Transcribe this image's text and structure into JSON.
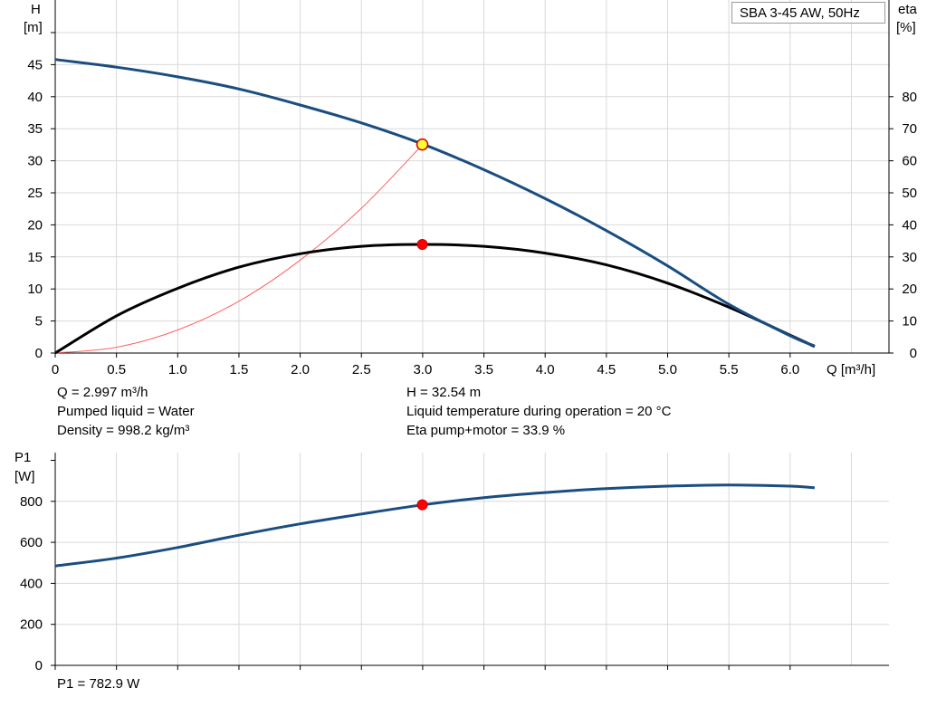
{
  "chart_data": [
    {
      "type": "line",
      "title": "",
      "legend": "SBA 3-45 AW, 50Hz",
      "legend_placement": "top-right",
      "xlabel": "Q [m³/h]",
      "ylabel_left": [
        "H",
        "[m]"
      ],
      "ylabel_right": [
        "eta",
        "[%]"
      ],
      "xlim": [
        0,
        6.8
      ],
      "ylim_left": [
        0,
        50
      ],
      "ylim_right": [
        0,
        100
      ],
      "x_ticks": [
        "0",
        "0.5",
        "1.0",
        "1.5",
        "2.0",
        "2.5",
        "3.0",
        "3.5",
        "4.0",
        "4.5",
        "5.0",
        "5.5",
        "6.0"
      ],
      "y_ticks_left": [
        "0",
        "5",
        "10",
        "15",
        "20",
        "25",
        "30",
        "35",
        "40",
        "45"
      ],
      "y_ticks_right": [
        "0",
        "10",
        "20",
        "30",
        "40",
        "50",
        "60",
        "70",
        "80"
      ],
      "grid": true,
      "series": [
        {
          "axis": "left",
          "color": "#1a4d80",
          "x": [
            0,
            0.5,
            1.0,
            1.5,
            2.0,
            2.5,
            3.0,
            3.5,
            4.0,
            4.5,
            5.0,
            5.5,
            6.0,
            6.2
          ],
          "y": [
            45.8,
            44.6,
            43.1,
            41.2,
            38.7,
            35.9,
            32.6,
            28.6,
            24.1,
            19.1,
            13.6,
            7.6,
            2.7,
            1.1
          ]
        },
        {
          "axis": "right",
          "color": "#000000",
          "x": [
            0,
            0.5,
            1.0,
            1.5,
            2.0,
            2.5,
            3.0,
            3.5,
            4.0,
            4.5,
            5.0,
            5.5,
            6.0,
            6.2
          ],
          "y": [
            0,
            11.6,
            20.2,
            26.8,
            31.0,
            33.3,
            33.9,
            33.3,
            31.2,
            27.5,
            21.8,
            14.3,
            5.6,
            2.0
          ]
        },
        {
          "axis": "left",
          "color": "#ff6060",
          "x": [
            0,
            0.5,
            1.0,
            1.5,
            2.0,
            2.5,
            3.0
          ],
          "y": [
            0,
            0.9,
            3.6,
            8.1,
            14.5,
            22.6,
            32.54
          ]
        }
      ],
      "operating_point": {
        "q": 2.997,
        "h": 32.54,
        "eta": 33.9
      }
    },
    {
      "type": "line",
      "title": "",
      "ylabel_left": [
        "P1",
        "[W]"
      ],
      "xlim": [
        0,
        6.8
      ],
      "ylim": [
        0,
        1000
      ],
      "y_ticks": [
        "0",
        "200",
        "400",
        "600",
        "800"
      ],
      "grid": true,
      "series": [
        {
          "color": "#1a4d80",
          "x": [
            0,
            0.5,
            1.0,
            1.5,
            2.0,
            2.5,
            3.0,
            3.5,
            4.0,
            4.5,
            5.0,
            5.5,
            6.0,
            6.2
          ],
          "y": [
            485,
            523,
            575,
            635,
            690,
            738,
            783,
            818,
            843,
            862,
            874,
            880,
            874,
            866
          ]
        }
      ],
      "operating_point": {
        "q": 2.997,
        "p1": 782.9
      }
    }
  ],
  "info": {
    "q": "Q = 2.997 m³/h",
    "h": "H = 32.54 m",
    "pumped_liquid": "Pumped liquid = Water",
    "liquid_temp": "Liquid temperature during operation = 20 °C",
    "density": "Density = 998.2 kg/m³",
    "eta": "Eta pump+motor = 33.9 %",
    "p1": "P1 = 782.9 W"
  }
}
